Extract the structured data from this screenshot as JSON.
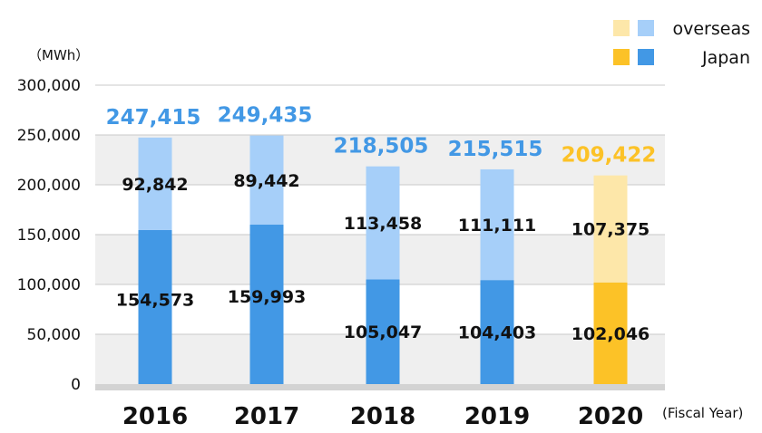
{
  "chart_data": {
    "type": "bar",
    "stacked": true,
    "categories": [
      "2016",
      "2017",
      "2018",
      "2019",
      "2020"
    ],
    "series": [
      {
        "name": "Japan",
        "values": [
          154573,
          159993,
          105047,
          104403,
          102046
        ]
      },
      {
        "name": "overseas",
        "values": [
          92842,
          89442,
          113458,
          111111,
          107375
        ]
      }
    ],
    "totals": [
      "247,415",
      "249,435",
      "218,505",
      "215,515",
      "209,422"
    ],
    "japan_labels": [
      "154,573",
      "159,993",
      "105,047",
      "104,403",
      "102,046"
    ],
    "overseas_labels": [
      "92,842",
      "89,442",
      "113,458",
      "111,111",
      "107,375"
    ],
    "ylabel": "（MWh）",
    "xlabel": "(Fiscal Year)",
    "ylim": [
      0,
      300000
    ],
    "yticks": [
      0,
      50000,
      100000,
      150000,
      200000,
      250000,
      300000
    ],
    "ytick_labels": [
      "0",
      "50,000",
      "100,000",
      "150,000",
      "200,000",
      "250,000",
      "300,000"
    ],
    "legend": {
      "position": "top-right",
      "items": [
        {
          "label": "overseas",
          "colors": [
            "#fde7a9",
            "#a6cff9"
          ]
        },
        {
          "label": "Japan",
          "colors": [
            "#fcc227",
            "#4298e5"
          ]
        }
      ]
    },
    "colors": {
      "japan": "#4298e5",
      "overseas": "#a6cff9",
      "japan_highlight": "#fcc227",
      "overseas_highlight": "#fde7a9",
      "total_label": "#4298e5",
      "total_label_highlight": "#fcc227",
      "band": "#efefef",
      "grid": "#c9c9c9",
      "baseline": "#d3d3d3"
    },
    "highlight_index": 4
  }
}
